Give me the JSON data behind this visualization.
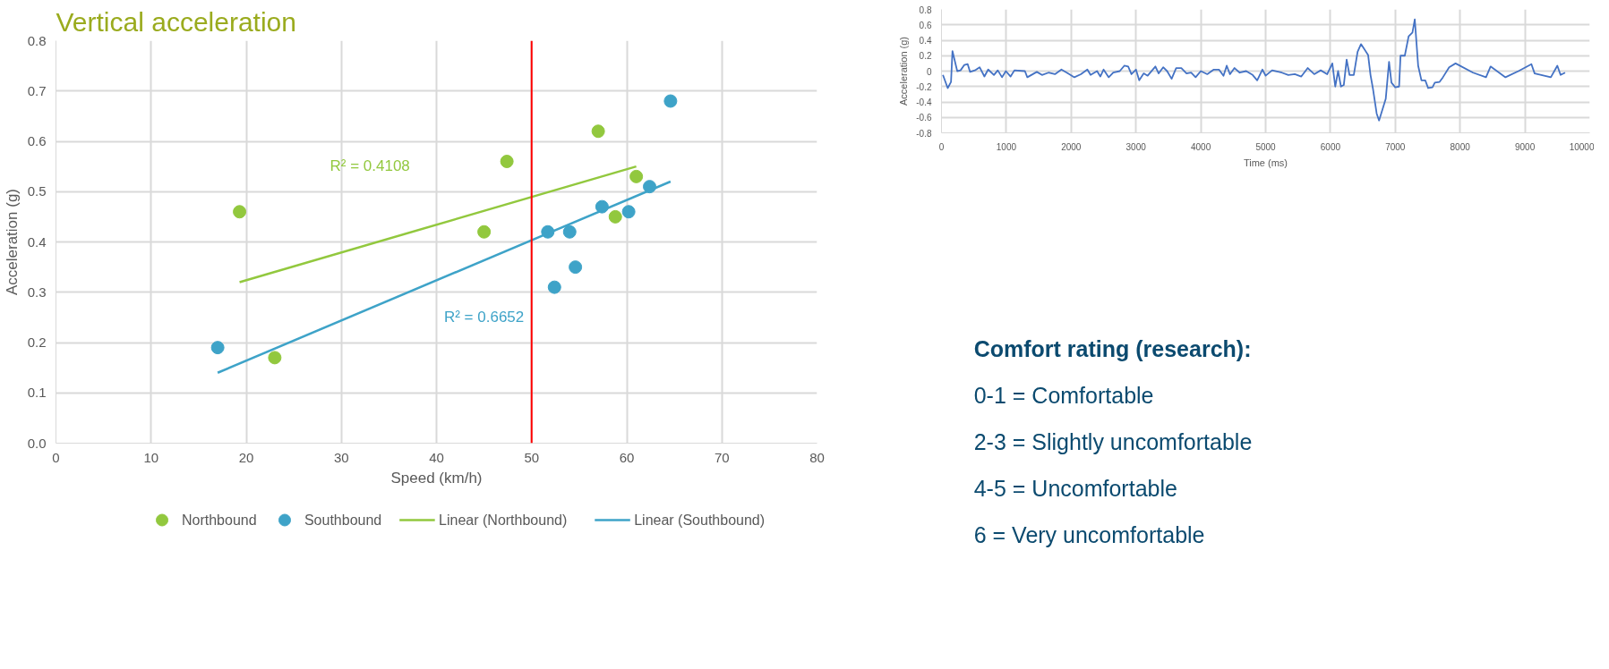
{
  "chart_data": [
    {
      "type": "scatter",
      "title": "Vertical acceleration",
      "xlabel": "Speed (km/h)",
      "ylabel": "Acceleration (g)",
      "xlim": [
        0,
        80
      ],
      "ylim": [
        0,
        0.8
      ],
      "xticks": [
        0,
        10,
        20,
        30,
        40,
        50,
        60,
        70,
        80
      ],
      "yticks": [
        {
          "value": 0,
          "label": "0.0"
        },
        0.1,
        0.2,
        0.3,
        0.4,
        0.5,
        0.6,
        0.7,
        0.8
      ],
      "grid": true,
      "legend": "bottom",
      "series": [
        {
          "name": "Northbound",
          "color": "#92c83e",
          "x": [
            19.3,
            23,
            45,
            47.4,
            57,
            58.8,
            61
          ],
          "values": [
            0.46,
            0.17,
            0.42,
            0.56,
            0.62,
            0.45,
            0.53
          ]
        },
        {
          "name": "Southbound",
          "color": "#3ea3c8",
          "x": [
            17,
            51.7,
            52.4,
            54,
            54.6,
            57.4,
            60.2,
            62.4,
            64.6
          ],
          "values": [
            0.19,
            0.42,
            0.31,
            0.42,
            0.35,
            0.47,
            0.46,
            0.51,
            0.68
          ]
        },
        {
          "name": "Linear (Northbound)",
          "type": "line",
          "color": "#92c83e",
          "x": [
            19.3,
            61
          ],
          "values": [
            0.32,
            0.55
          ]
        },
        {
          "name": "Linear (Southbound)",
          "type": "line",
          "color": "#3ea3c8",
          "x": [
            17,
            64.6
          ],
          "values": [
            0.14,
            0.52
          ]
        }
      ],
      "ref_lines": [
        {
          "axis": "x",
          "value": 50,
          "label": null,
          "color": "#ff0000"
        }
      ],
      "annotations": [
        "R² = 0.4108",
        "R² = 0.6652"
      ]
    },
    {
      "type": "line",
      "xlabel": "Time (ms)",
      "ylabel": "Acceleration (g)",
      "xlim": [
        0,
        10000
      ],
      "ylim": [
        -0.8,
        0.8
      ],
      "xticks": [
        0,
        1000,
        2000,
        3000,
        4000,
        5000,
        6000,
        7000,
        8000,
        9000,
        10000
      ],
      "yticks": [
        -0.8,
        -0.6,
        -0.4,
        -0.2,
        0,
        0.2,
        0.4,
        0.6,
        0.8
      ],
      "grid": true,
      "series": [
        {
          "color": "#4472c4",
          "x": [
            22,
            96,
            147,
            169,
            243,
            294,
            353,
            404,
            441,
            515,
            588,
            662,
            720,
            809,
            868,
            934,
            993,
            1066,
            1125,
            1287,
            1324,
            1471,
            1550,
            1650,
            1750,
            1850,
            1950,
            2050,
            2150,
            2250,
            2300,
            2400,
            2450,
            2500,
            2580,
            2650,
            2750,
            2820,
            2880,
            2930,
            3000,
            3050,
            3120,
            3180,
            3300,
            3350,
            3420,
            3480,
            3550,
            3620,
            3700,
            3780,
            3850,
            3920,
            4000,
            4100,
            4200,
            4280,
            4350,
            4400,
            4450,
            4520,
            4600,
            4700,
            4800,
            4870,
            4950,
            5000,
            5100,
            5250,
            5350,
            5450,
            5550,
            5650,
            5750,
            5850,
            5950,
            6029,
            6074,
            6118,
            6162,
            6206,
            6250,
            6294,
            6360,
            6419,
            6471,
            6581,
            6618,
            6654,
            6713,
            6750,
            6853,
            6904,
            6941,
            7000,
            7059,
            7081,
            7147,
            7206,
            7265,
            7301,
            7353,
            7404,
            7463,
            7507,
            7574,
            7610,
            7684,
            7735,
            7831,
            7930,
            8200,
            8400,
            8470,
            8700,
            8900,
            9100,
            9150,
            9400,
            9500,
            9550,
            9620
          ],
          "values": [
            -0.05,
            -0.22,
            -0.14,
            0.26,
            0,
            0.01,
            0.08,
            0.09,
            -0.01,
            0.01,
            0.05,
            -0.07,
            0.02,
            -0.05,
            0.01,
            -0.08,
            0,
            -0.07,
            0.01,
            0,
            -0.08,
            -0.01,
            -0.05,
            -0.02,
            -0.04,
            0.02,
            -0.03,
            -0.08,
            -0.04,
            0.02,
            -0.05,
            0,
            -0.07,
            0.02,
            -0.08,
            -0.02,
            0,
            0.07,
            0.06,
            -0.04,
            0.02,
            -0.12,
            -0.03,
            -0.06,
            0.06,
            -0.03,
            0.05,
            0,
            -0.1,
            0.04,
            0.04,
            -0.03,
            -0.02,
            -0.08,
            0,
            -0.04,
            0.02,
            0.02,
            -0.06,
            0.07,
            -0.04,
            0.04,
            -0.02,
            0,
            -0.05,
            -0.12,
            0.02,
            -0.06,
            0.01,
            -0.02,
            -0.05,
            -0.04,
            -0.07,
            0.04,
            -0.04,
            0.01,
            -0.04,
            0.1,
            -0.2,
            0,
            -0.2,
            -0.18,
            0.15,
            -0.05,
            -0.05,
            0.25,
            0.35,
            0.21,
            -0.05,
            -0.22,
            -0.55,
            -0.64,
            -0.36,
            0.12,
            -0.15,
            -0.21,
            -0.2,
            0.2,
            0.2,
            0.45,
            0.5,
            0.67,
            0.07,
            -0.12,
            -0.12,
            -0.22,
            -0.21,
            -0.15,
            -0.14,
            -0.08,
            0.05,
            0.1,
            -0.02,
            -0.08,
            0.06,
            -0.08,
            0,
            0.09,
            -0.03,
            -0.08,
            0.07,
            -0.05,
            -0.02
          ]
        }
      ]
    },
    {
      "type": "other",
      "title": "Comfort rating (research):",
      "annotations": [
        "0-1 = Comfortable",
        "2-3 = Slightly uncomfortable",
        "4-5 = Uncomfortable",
        "6 = Very uncomfortable"
      ]
    }
  ]
}
